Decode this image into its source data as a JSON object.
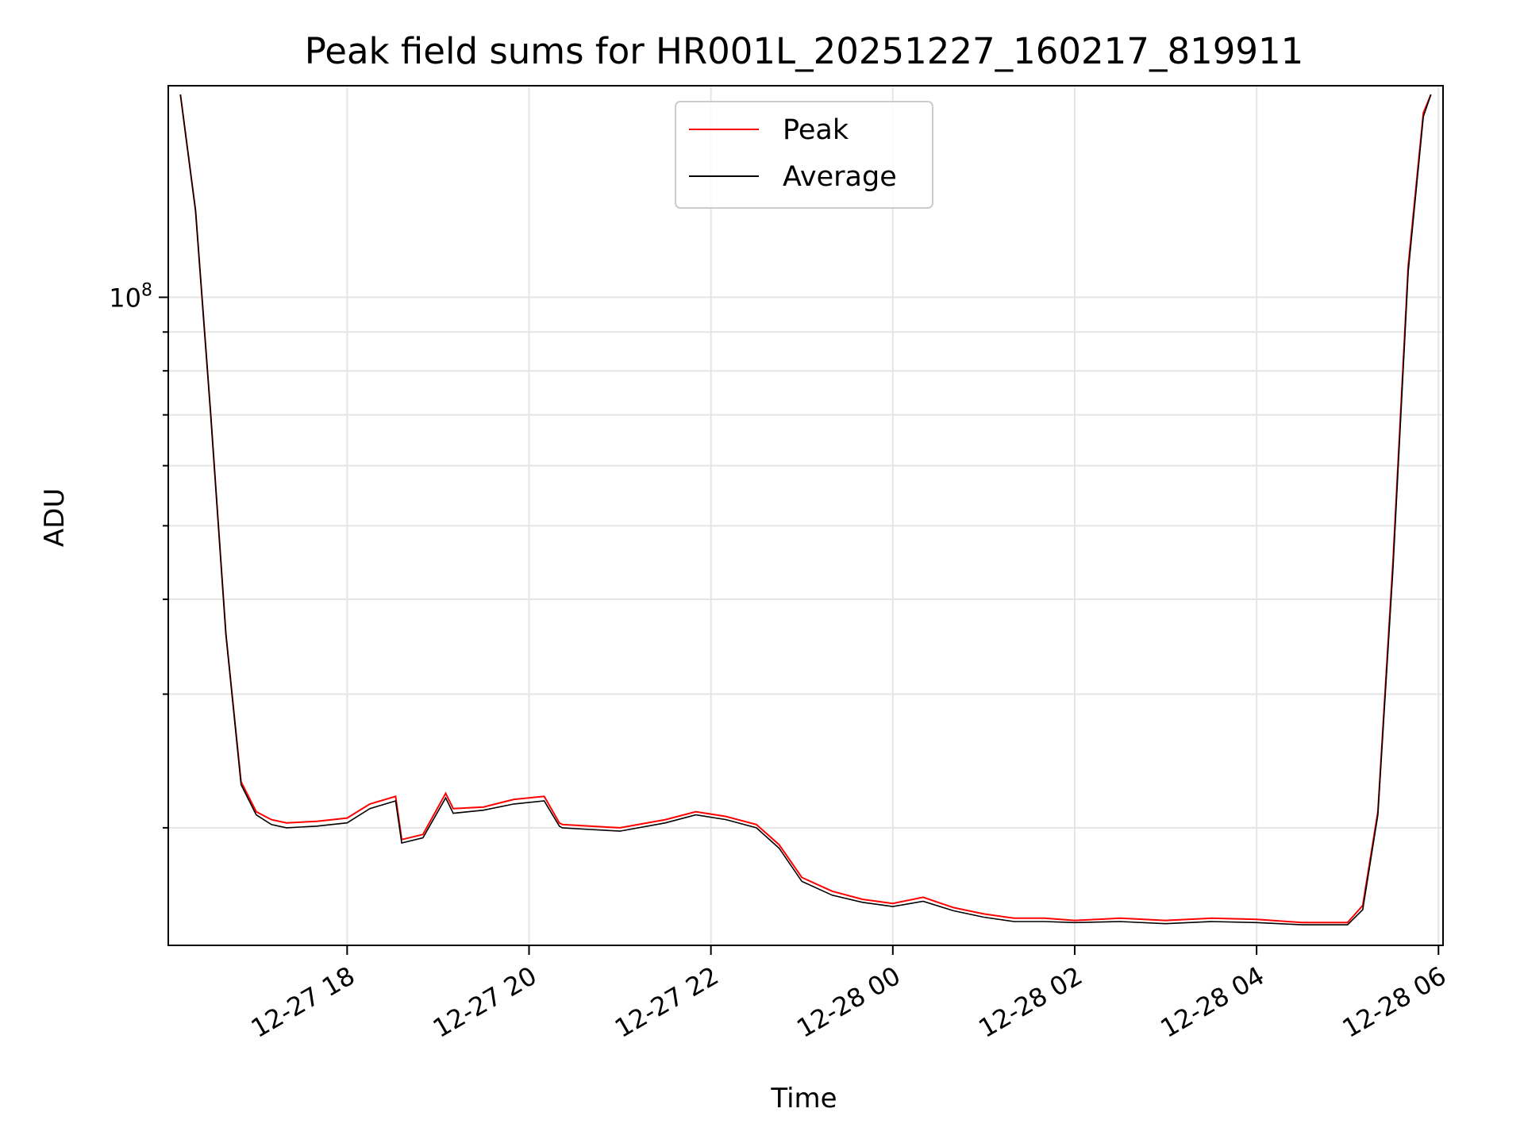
{
  "chart_data": {
    "type": "line",
    "title": "Peak field sums for HR001L_20251227_160217_819911",
    "xlabel": "Time",
    "ylabel": "ADU",
    "yscale": "log",
    "xlim": [
      "2025-12-27 16:02",
      "2025-12-28 06:03"
    ],
    "ylim": [
      14000000,
      190000000
    ],
    "grid": true,
    "legend_position": "top-center",
    "x_ticks": [
      "12-27 18",
      "12-27 20",
      "12-27 22",
      "12-28 00",
      "12-28 02",
      "12-28 04",
      "12-28 06"
    ],
    "x_tick_values": [
      "2025-12-27 18:00",
      "2025-12-27 20:00",
      "2025-12-27 22:00",
      "2025-12-28 00:00",
      "2025-12-28 02:00",
      "2025-12-28 04:00",
      "2025-12-28 06:00"
    ],
    "y_ticks": [
      "10^8"
    ],
    "y_tick_values": [
      100000000
    ],
    "series": [
      {
        "name": "Peak",
        "color": "#ff0000",
        "x": [
          "2025-12-27 16:10",
          "2025-12-27 16:20",
          "2025-12-27 16:30",
          "2025-12-27 16:40",
          "2025-12-27 16:50",
          "2025-12-27 17:00",
          "2025-12-27 17:10",
          "2025-12-27 17:20",
          "2025-12-27 17:40",
          "2025-12-27 18:00",
          "2025-12-27 18:15",
          "2025-12-27 18:32",
          "2025-12-27 18:36",
          "2025-12-27 18:50",
          "2025-12-27 19:05",
          "2025-12-27 19:10",
          "2025-12-27 19:30",
          "2025-12-27 19:50",
          "2025-12-27 20:10",
          "2025-12-27 20:20",
          "2025-12-27 20:22",
          "2025-12-27 20:40",
          "2025-12-27 21:00",
          "2025-12-27 21:30",
          "2025-12-27 21:50",
          "2025-12-27 22:10",
          "2025-12-27 22:30",
          "2025-12-27 22:45",
          "2025-12-27 23:00",
          "2025-12-27 23:20",
          "2025-12-27 23:40",
          "2025-12-28 00:00",
          "2025-12-28 00:20",
          "2025-12-28 00:40",
          "2025-12-28 01:00",
          "2025-12-28 01:20",
          "2025-12-28 01:40",
          "2025-12-28 02:00",
          "2025-12-28 02:30",
          "2025-12-28 03:00",
          "2025-12-28 03:30",
          "2025-12-28 04:00",
          "2025-12-28 04:30",
          "2025-12-28 05:00",
          "2025-12-28 05:10",
          "2025-12-28 05:20",
          "2025-12-28 05:30",
          "2025-12-28 05:40",
          "2025-12-28 05:50",
          "2025-12-28 05:55"
        ],
        "y": [
          185000000,
          130000000,
          70000000,
          36000000,
          23000000,
          21000000,
          20500000,
          20300000,
          20400000,
          20600000,
          21500000,
          22000000,
          19300000,
          19600000,
          22200000,
          21200000,
          21300000,
          21800000,
          22000000,
          20300000,
          20200000,
          20100000,
          20000000,
          20500000,
          21000000,
          20700000,
          20200000,
          19000000,
          17200000,
          16500000,
          16100000,
          15900000,
          16200000,
          15700000,
          15400000,
          15200000,
          15200000,
          15100000,
          15200000,
          15100000,
          15200000,
          15150000,
          15000000,
          15000000,
          15800000,
          21000000,
          45000000,
          110000000,
          175000000,
          185000000
        ]
      },
      {
        "name": "Average",
        "color": "#000000",
        "x": [
          "2025-12-27 16:10",
          "2025-12-27 16:20",
          "2025-12-27 16:30",
          "2025-12-27 16:40",
          "2025-12-27 16:50",
          "2025-12-27 17:00",
          "2025-12-27 17:10",
          "2025-12-27 17:20",
          "2025-12-27 17:40",
          "2025-12-27 18:00",
          "2025-12-27 18:15",
          "2025-12-27 18:32",
          "2025-12-27 18:36",
          "2025-12-27 18:50",
          "2025-12-27 19:05",
          "2025-12-27 19:10",
          "2025-12-27 19:30",
          "2025-12-27 19:50",
          "2025-12-27 20:10",
          "2025-12-27 20:20",
          "2025-12-27 20:22",
          "2025-12-27 20:40",
          "2025-12-27 21:00",
          "2025-12-27 21:30",
          "2025-12-27 21:50",
          "2025-12-27 22:10",
          "2025-12-27 22:30",
          "2025-12-27 22:45",
          "2025-12-27 23:00",
          "2025-12-27 23:20",
          "2025-12-27 23:40",
          "2025-12-28 00:00",
          "2025-12-28 00:20",
          "2025-12-28 00:40",
          "2025-12-28 01:00",
          "2025-12-28 01:20",
          "2025-12-28 01:40",
          "2025-12-28 02:00",
          "2025-12-28 02:30",
          "2025-12-28 03:00",
          "2025-12-28 03:30",
          "2025-12-28 04:00",
          "2025-12-28 04:30",
          "2025-12-28 05:00",
          "2025-12-28 05:10",
          "2025-12-28 05:20",
          "2025-12-28 05:30",
          "2025-12-28 05:40",
          "2025-12-28 05:50",
          "2025-12-28 05:55"
        ],
        "y": [
          185000000,
          130000000,
          70000000,
          36000000,
          22800000,
          20800000,
          20200000,
          20000000,
          20100000,
          20300000,
          21200000,
          21700000,
          19100000,
          19400000,
          21900000,
          20900000,
          21100000,
          21500000,
          21700000,
          20100000,
          20000000,
          19900000,
          19800000,
          20300000,
          20800000,
          20500000,
          20000000,
          18800000,
          17000000,
          16300000,
          15950000,
          15750000,
          16000000,
          15550000,
          15250000,
          15050000,
          15050000,
          15000000,
          15050000,
          14950000,
          15050000,
          15000000,
          14900000,
          14900000,
          15600000,
          20800000,
          44000000,
          108000000,
          173000000,
          185000000
        ]
      }
    ]
  }
}
